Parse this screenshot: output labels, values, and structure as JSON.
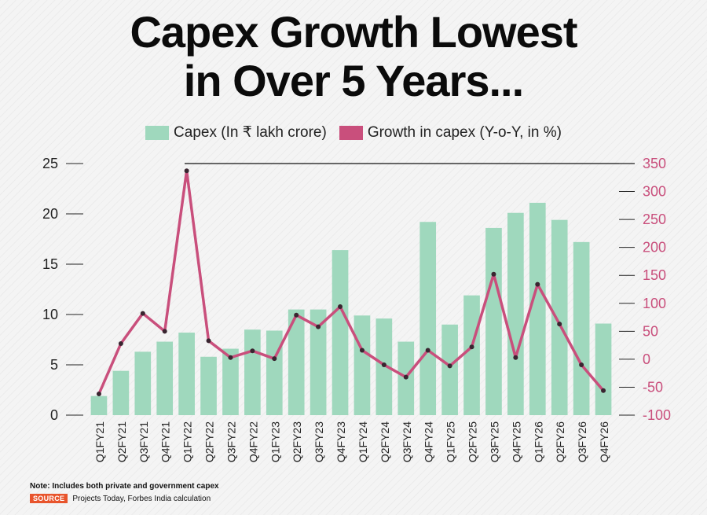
{
  "title_line1": "Capex Growth Lowest",
  "title_line2": "in Over 5 Years...",
  "colors": {
    "bar": "#9fd8bd",
    "line": "#c94f7c",
    "marker": "#3a2530",
    "source_badge": "#e8542c"
  },
  "note": "Note: Includes both private and government capex",
  "source_label": "SOURCE",
  "source_text": "Projects Today, Forbes India calculation",
  "chart_data": {
    "type": "bar",
    "categories": [
      "Q1FY21",
      "Q2FY21",
      "Q3FY21",
      "Q4FY21",
      "Q1FY22",
      "Q2FY22",
      "Q3FY22",
      "Q4FY22",
      "Q1FY23",
      "Q2FY23",
      "Q3FY23",
      "Q4FY23",
      "Q1FY24",
      "Q2FY24",
      "Q3FY24",
      "Q4FY24",
      "Q1FY25",
      "Q2FY25",
      "Q3FY25",
      "Q4FY25",
      "Q1FY26",
      "Q2FY26",
      "Q3FY26",
      "Q4FY26"
    ],
    "series": [
      {
        "name": "Capex (In ₹ lakh crore)",
        "type": "bar",
        "axis": "left",
        "values": [
          1.9,
          4.4,
          6.3,
          7.3,
          8.2,
          5.8,
          6.6,
          8.5,
          8.4,
          10.5,
          10.5,
          16.4,
          9.9,
          9.6,
          7.3,
          19.2,
          9.0,
          11.9,
          18.6,
          20.1,
          21.1,
          19.4,
          17.2,
          9.1
        ]
      },
      {
        "name": "Growth in capex (Y-o-Y, in %)",
        "type": "line",
        "axis": "right",
        "values": [
          -62,
          28,
          82,
          50,
          337,
          33,
          3,
          15,
          1,
          79,
          58,
          94,
          16,
          -10,
          -32,
          16,
          -12,
          22,
          152,
          3,
          134,
          63,
          -10,
          -56
        ]
      }
    ],
    "left_axis": {
      "ylim": [
        0,
        25
      ],
      "ticks": [
        0,
        5,
        10,
        15,
        20,
        25
      ]
    },
    "right_axis": {
      "ylim": [
        -100,
        350
      ],
      "ticks": [
        -100,
        -50,
        0,
        50,
        100,
        150,
        200,
        250,
        300,
        350
      ]
    },
    "legend_position": "top-center"
  }
}
